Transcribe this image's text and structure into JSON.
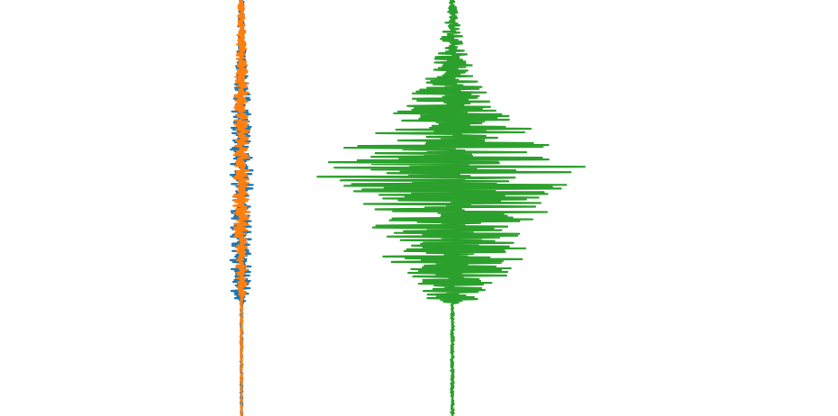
{
  "chart_data": {
    "type": "line",
    "orientation": "vertical-traces",
    "grid": false,
    "axes_visible": false,
    "legend": "none",
    "x_unit": "amplitude",
    "y_unit": "sample index",
    "samples": 460,
    "colors": {
      "blue": "#1f77b4",
      "orange": "#ff7f0e",
      "green": "#2ca02c"
    },
    "series": [
      {
        "color_key": "blue",
        "center": 0,
        "active_range": [
          0,
          330
        ],
        "envelope": [
          {
            "t": 0,
            "amp": 0.2
          },
          {
            "t": 60,
            "amp": 0.35
          },
          {
            "t": 140,
            "amp": 0.85
          },
          {
            "t": 190,
            "amp": 1.0
          },
          {
            "t": 240,
            "amp": 0.8
          },
          {
            "t": 290,
            "amp": 0.9
          },
          {
            "t": 325,
            "amp": 0.85
          },
          {
            "t": 335,
            "amp": 0.1
          },
          {
            "t": 460,
            "amp": 0.08
          }
        ]
      },
      {
        "color_key": "orange",
        "center": 0,
        "active_range": [
          0,
          330
        ],
        "envelope": [
          {
            "t": 0,
            "amp": 0.25
          },
          {
            "t": 60,
            "amp": 0.4
          },
          {
            "t": 140,
            "amp": 0.6
          },
          {
            "t": 190,
            "amp": 0.55
          },
          {
            "t": 240,
            "amp": 0.7
          },
          {
            "t": 290,
            "amp": 0.45
          },
          {
            "t": 325,
            "amp": 0.35
          },
          {
            "t": 335,
            "amp": 0.08
          },
          {
            "t": 460,
            "amp": 0.06
          }
        ]
      },
      {
        "color_key": "green",
        "center": 0,
        "active_range": [
          0,
          330
        ],
        "envelope": [
          {
            "t": 0,
            "amp": 0.02
          },
          {
            "t": 30,
            "amp": 0.05
          },
          {
            "t": 80,
            "amp": 0.13
          },
          {
            "t": 130,
            "amp": 0.4
          },
          {
            "t": 195,
            "amp": 0.95
          },
          {
            "t": 230,
            "amp": 0.6
          },
          {
            "t": 285,
            "amp": 0.45
          },
          {
            "t": 330,
            "amp": 0.18
          },
          {
            "t": 335,
            "amp": 0.01
          },
          {
            "t": 460,
            "amp": 0.01
          }
        ]
      }
    ],
    "xlim_left": [
      -1.5,
      1.5
    ],
    "xlim_right": [
      -1.0,
      1.0
    ]
  }
}
